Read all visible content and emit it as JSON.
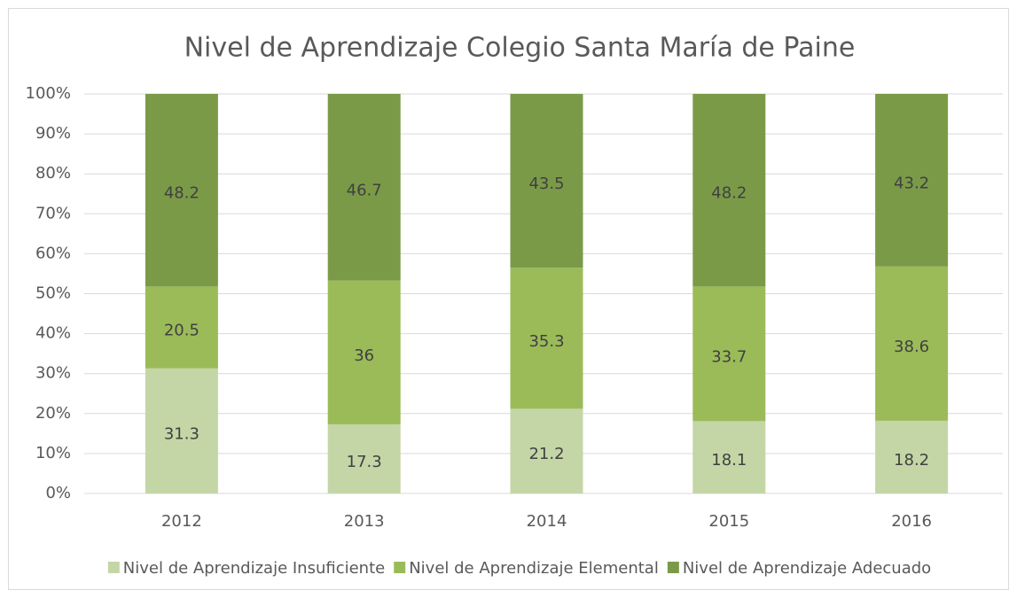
{
  "chart_data": {
    "type": "stacked_bar",
    "title": "Nivel de Aprendizaje Colegio Santa María de Paine",
    "categories": [
      "2012",
      "2013",
      "2014",
      "2015",
      "2016"
    ],
    "series": [
      {
        "name": "Nivel de Aprendizaje Insuficiente",
        "color": "#c4d6a6",
        "values": [
          31.3,
          17.3,
          21.2,
          18.1,
          18.2
        ]
      },
      {
        "name": "Nivel de Aprendizaje Elemental",
        "color": "#9bbb59",
        "values": [
          20.5,
          36,
          35.3,
          33.7,
          38.6
        ]
      },
      {
        "name": "Nivel de Aprendizaje Adecuado",
        "color": "#7b9a48",
        "values": [
          48.2,
          46.7,
          43.5,
          48.2,
          43.2
        ]
      }
    ],
    "ylim": [
      0,
      100
    ],
    "yticks": [
      {
        "value": 0,
        "label": "0%"
      },
      {
        "value": 10,
        "label": "10%"
      },
      {
        "value": 20,
        "label": "20%"
      },
      {
        "value": 30,
        "label": "30%"
      },
      {
        "value": 40,
        "label": "40%"
      },
      {
        "value": 50,
        "label": "50%"
      },
      {
        "value": 60,
        "label": "60%"
      },
      {
        "value": 70,
        "label": "70%"
      },
      {
        "value": 80,
        "label": "80%"
      },
      {
        "value": 90,
        "label": "90%"
      },
      {
        "value": 100,
        "label": "100%"
      }
    ],
    "grid": true,
    "legend": "bottom"
  }
}
